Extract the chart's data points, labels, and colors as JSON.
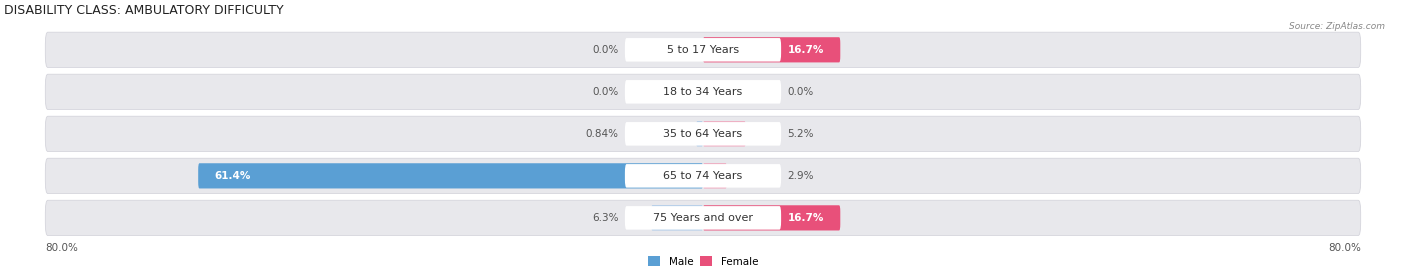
{
  "title": "DISABILITY CLASS: AMBULATORY DIFFICULTY",
  "source": "Source: ZipAtlas.com",
  "categories": [
    "5 to 17 Years",
    "18 to 34 Years",
    "35 to 64 Years",
    "65 to 74 Years",
    "75 Years and over"
  ],
  "male_values": [
    0.0,
    0.0,
    0.84,
    61.4,
    6.3
  ],
  "female_values": [
    16.7,
    0.0,
    5.2,
    2.9,
    16.7
  ],
  "male_color_large": "#5a9fd4",
  "male_color_small": "#a8c8e8",
  "female_color_large": "#e8507a",
  "female_color_small": "#f0a0b8",
  "bar_bg_color": "#e8e8ec",
  "bar_bg_edge": "#d0d0d8",
  "axis_min": -80.0,
  "axis_max": 80.0,
  "axis_label_left": "80.0%",
  "axis_label_right": "80.0%",
  "title_fontsize": 9,
  "label_fontsize": 7.5,
  "category_fontsize": 8,
  "large_threshold": 10
}
